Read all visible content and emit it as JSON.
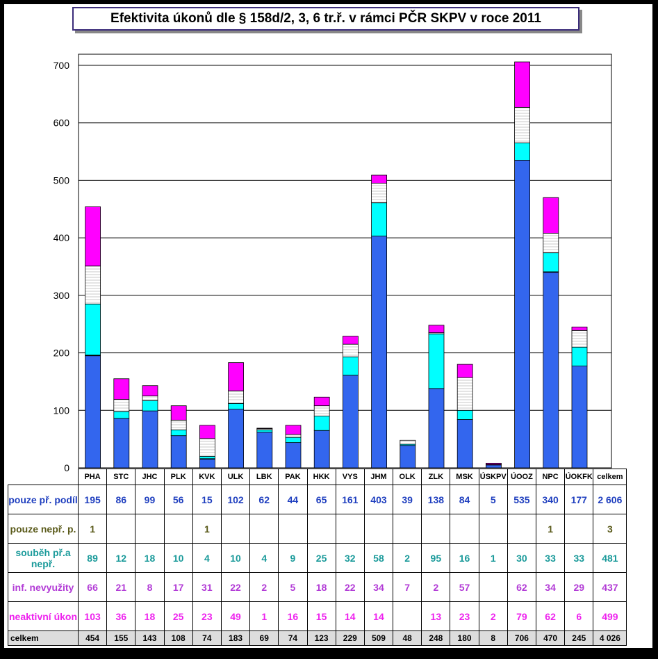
{
  "title": "Efektivita úkonů dle § 158d/2, 3, 6 tr.ř. v rámci PČR SKPV v roce 2011",
  "chart_data": {
    "type": "bar",
    "stacked": true,
    "categories": [
      "PHA",
      "STC",
      "JHC",
      "PLK",
      "KVK",
      "ULK",
      "LBK",
      "PAK",
      "HKK",
      "VYS",
      "JHM",
      "OLK",
      "ZLK",
      "MSK",
      "ÚSKPV",
      "ÚOOZ",
      "NPC",
      "ÚOKFK"
    ],
    "total_column_label": "celkem",
    "ylim": [
      0,
      700
    ],
    "yticks": [
      0,
      100,
      200,
      300,
      400,
      500,
      600,
      700
    ],
    "grid": true,
    "series": [
      {
        "name": "pouze př. podíl",
        "color": "#3366ee",
        "text_color": "#1f3fbf",
        "values": [
          195,
          86,
          99,
          56,
          15,
          102,
          62,
          44,
          65,
          161,
          403,
          39,
          138,
          84,
          5,
          535,
          340,
          177
        ],
        "total": "2 606"
      },
      {
        "name": "pouze nepř. p.",
        "color": "#4a4a00",
        "text_color": "#5a5a1a",
        "values": [
          1,
          null,
          null,
          null,
          1,
          null,
          null,
          null,
          null,
          null,
          null,
          null,
          null,
          null,
          null,
          null,
          1,
          null
        ],
        "total": "3"
      },
      {
        "name": "souběh př.a nepř.",
        "color": "#00ffff",
        "text_color": "#1a9a9a",
        "values": [
          89,
          12,
          18,
          10,
          4,
          10,
          4,
          9,
          25,
          32,
          58,
          2,
          95,
          16,
          1,
          30,
          33,
          33
        ],
        "total": "481"
      },
      {
        "name": "inf. nevyužity",
        "color": "#ffffff",
        "text_color": "#b23bd6",
        "values": [
          66,
          21,
          8,
          17,
          31,
          22,
          2,
          5,
          18,
          22,
          34,
          7,
          2,
          57,
          null,
          62,
          34,
          29
        ],
        "total": "437"
      },
      {
        "name": "neaktivní úkon",
        "color": "#ff00ff",
        "text_color": "#ee22ee",
        "values": [
          103,
          36,
          18,
          25,
          23,
          49,
          1,
          16,
          15,
          14,
          14,
          null,
          13,
          23,
          2,
          79,
          62,
          6
        ],
        "total": "499"
      }
    ],
    "totals": {
      "name": "celkem",
      "values": [
        454,
        155,
        143,
        108,
        74,
        183,
        69,
        74,
        123,
        229,
        509,
        48,
        248,
        180,
        8,
        706,
        470,
        245
      ],
      "grand_total": "4 026"
    }
  }
}
